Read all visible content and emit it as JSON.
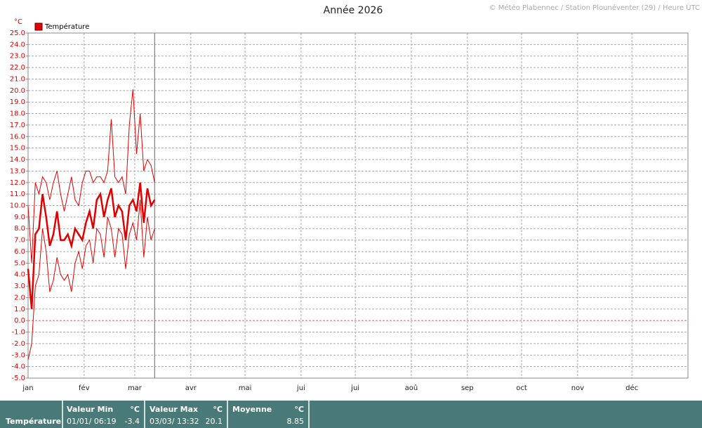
{
  "chart_data": {
    "type": "line",
    "title": "Année 2026",
    "credit": "© Météo Plabennec / Station Plounéventer (29) / Heure UTC",
    "y_unit": "°C",
    "legend": "top-left",
    "grid": true,
    "x": [
      0,
      2,
      4,
      6,
      8,
      10,
      12,
      14,
      16,
      18,
      20,
      22,
      24,
      26,
      28,
      30,
      32,
      34,
      36,
      38,
      40,
      42,
      44,
      46,
      48,
      50,
      52,
      54,
      56,
      58,
      60,
      62,
      64,
      66,
      68,
      70
    ],
    "series": [
      {
        "name": "Température",
        "color": "#e00000",
        "values": [
          4.5,
          1.0,
          7.5,
          8.0,
          11.0,
          9.0,
          6.5,
          7.5,
          9.5,
          7.0,
          7.0,
          7.5,
          6.5,
          8.0,
          7.5,
          7.0,
          8.5,
          9.5,
          8.0,
          10.5,
          11.0,
          9.0,
          10.5,
          11.5,
          9.0,
          10.0,
          9.5,
          7.0,
          10.0,
          10.5,
          9.5,
          12.0,
          8.5,
          11.5,
          10.0,
          10.5
        ]
      },
      {
        "color": "#e00000",
        "values": [
          -3.4,
          -2.0,
          3.0,
          4.0,
          8.0,
          6.0,
          2.5,
          3.5,
          5.5,
          4.0,
          3.5,
          4.0,
          2.5,
          5.0,
          6.0,
          4.5,
          6.5,
          7.0,
          5.0,
          8.0,
          7.5,
          5.5,
          9.0,
          8.0,
          5.5,
          8.0,
          7.5,
          4.5,
          7.5,
          8.5,
          7.0,
          10.5,
          5.5,
          9.0,
          7.0,
          8.0
        ]
      },
      {
        "color": "#e00000",
        "values": [
          10.0,
          5.0,
          12.0,
          11.0,
          12.5,
          12.0,
          10.5,
          12.0,
          13.0,
          11.0,
          9.5,
          11.0,
          12.5,
          10.5,
          10.0,
          12.0,
          13.0,
          13.0,
          12.0,
          12.5,
          12.5,
          12.0,
          13.0,
          17.5,
          12.5,
          12.0,
          12.5,
          11.0,
          17.0,
          20.1,
          14.5,
          18.0,
          13.0,
          14.0,
          13.5,
          12.0
        ]
      }
    ],
    "xlim": [
      0,
      365
    ],
    "xticks": [
      {
        "value": 0,
        "label": "jan"
      },
      {
        "value": 31,
        "label": "fév"
      },
      {
        "value": 59,
        "label": "mar"
      },
      {
        "value": 90,
        "label": "avr"
      },
      {
        "value": 120,
        "label": "mai"
      },
      {
        "value": 151,
        "label": "jui"
      },
      {
        "value": 181,
        "label": "jui"
      },
      {
        "value": 212,
        "label": "aoû"
      },
      {
        "value": 243,
        "label": "sep"
      },
      {
        "value": 273,
        "label": "oct"
      },
      {
        "value": 304,
        "label": "nov"
      },
      {
        "value": 334,
        "label": "déc"
      }
    ],
    "ylim": [
      -5,
      25
    ],
    "yticks": [
      {
        "value": -5,
        "label": "-5.0"
      },
      {
        "value": -4,
        "label": "-4.0"
      },
      {
        "value": -3,
        "label": "-3.0"
      },
      {
        "value": -2,
        "label": "-2.0"
      },
      {
        "value": -1,
        "label": "-1.0"
      },
      {
        "value": 0,
        "label": "0.0"
      },
      {
        "value": 1,
        "label": "1.0"
      },
      {
        "value": 2,
        "label": "2.0"
      },
      {
        "value": 3,
        "label": "3.0"
      },
      {
        "value": 4,
        "label": "4.0"
      },
      {
        "value": 5,
        "label": "5.0"
      },
      {
        "value": 6,
        "label": "6.0"
      },
      {
        "value": 7,
        "label": "7.0"
      },
      {
        "value": 8,
        "label": "8.0"
      },
      {
        "value": 9,
        "label": "9.0"
      },
      {
        "value": 10,
        "label": "10.0"
      },
      {
        "value": 11,
        "label": "11.0"
      },
      {
        "value": 12,
        "label": "12.0"
      },
      {
        "value": 13,
        "label": "13.0"
      },
      {
        "value": 14,
        "label": "14.0"
      },
      {
        "value": 15,
        "label": "15.0"
      },
      {
        "value": 16,
        "label": "16.0"
      },
      {
        "value": 17,
        "label": "17.0"
      },
      {
        "value": 18,
        "label": "18.0"
      },
      {
        "value": 19,
        "label": "19.0"
      },
      {
        "value": 20,
        "label": "20.0"
      },
      {
        "value": 21,
        "label": "21.0"
      },
      {
        "value": 22,
        "label": "22.0"
      },
      {
        "value": 23,
        "label": "23.0"
      },
      {
        "value": 24,
        "label": "24.0"
      },
      {
        "value": 25,
        "label": "25.0"
      }
    ]
  },
  "stats": {
    "row_label": "Température",
    "min": {
      "title": "Valeur Min",
      "unit": "°C",
      "date": "01/01/ 06:19",
      "value": "-3.4"
    },
    "max": {
      "title": "Valeur Max",
      "unit": "°C",
      "date": "03/03/ 13:32",
      "value": "20.1"
    },
    "mean": {
      "title": "Moyenne",
      "unit": "°C",
      "value": "8.85"
    }
  }
}
